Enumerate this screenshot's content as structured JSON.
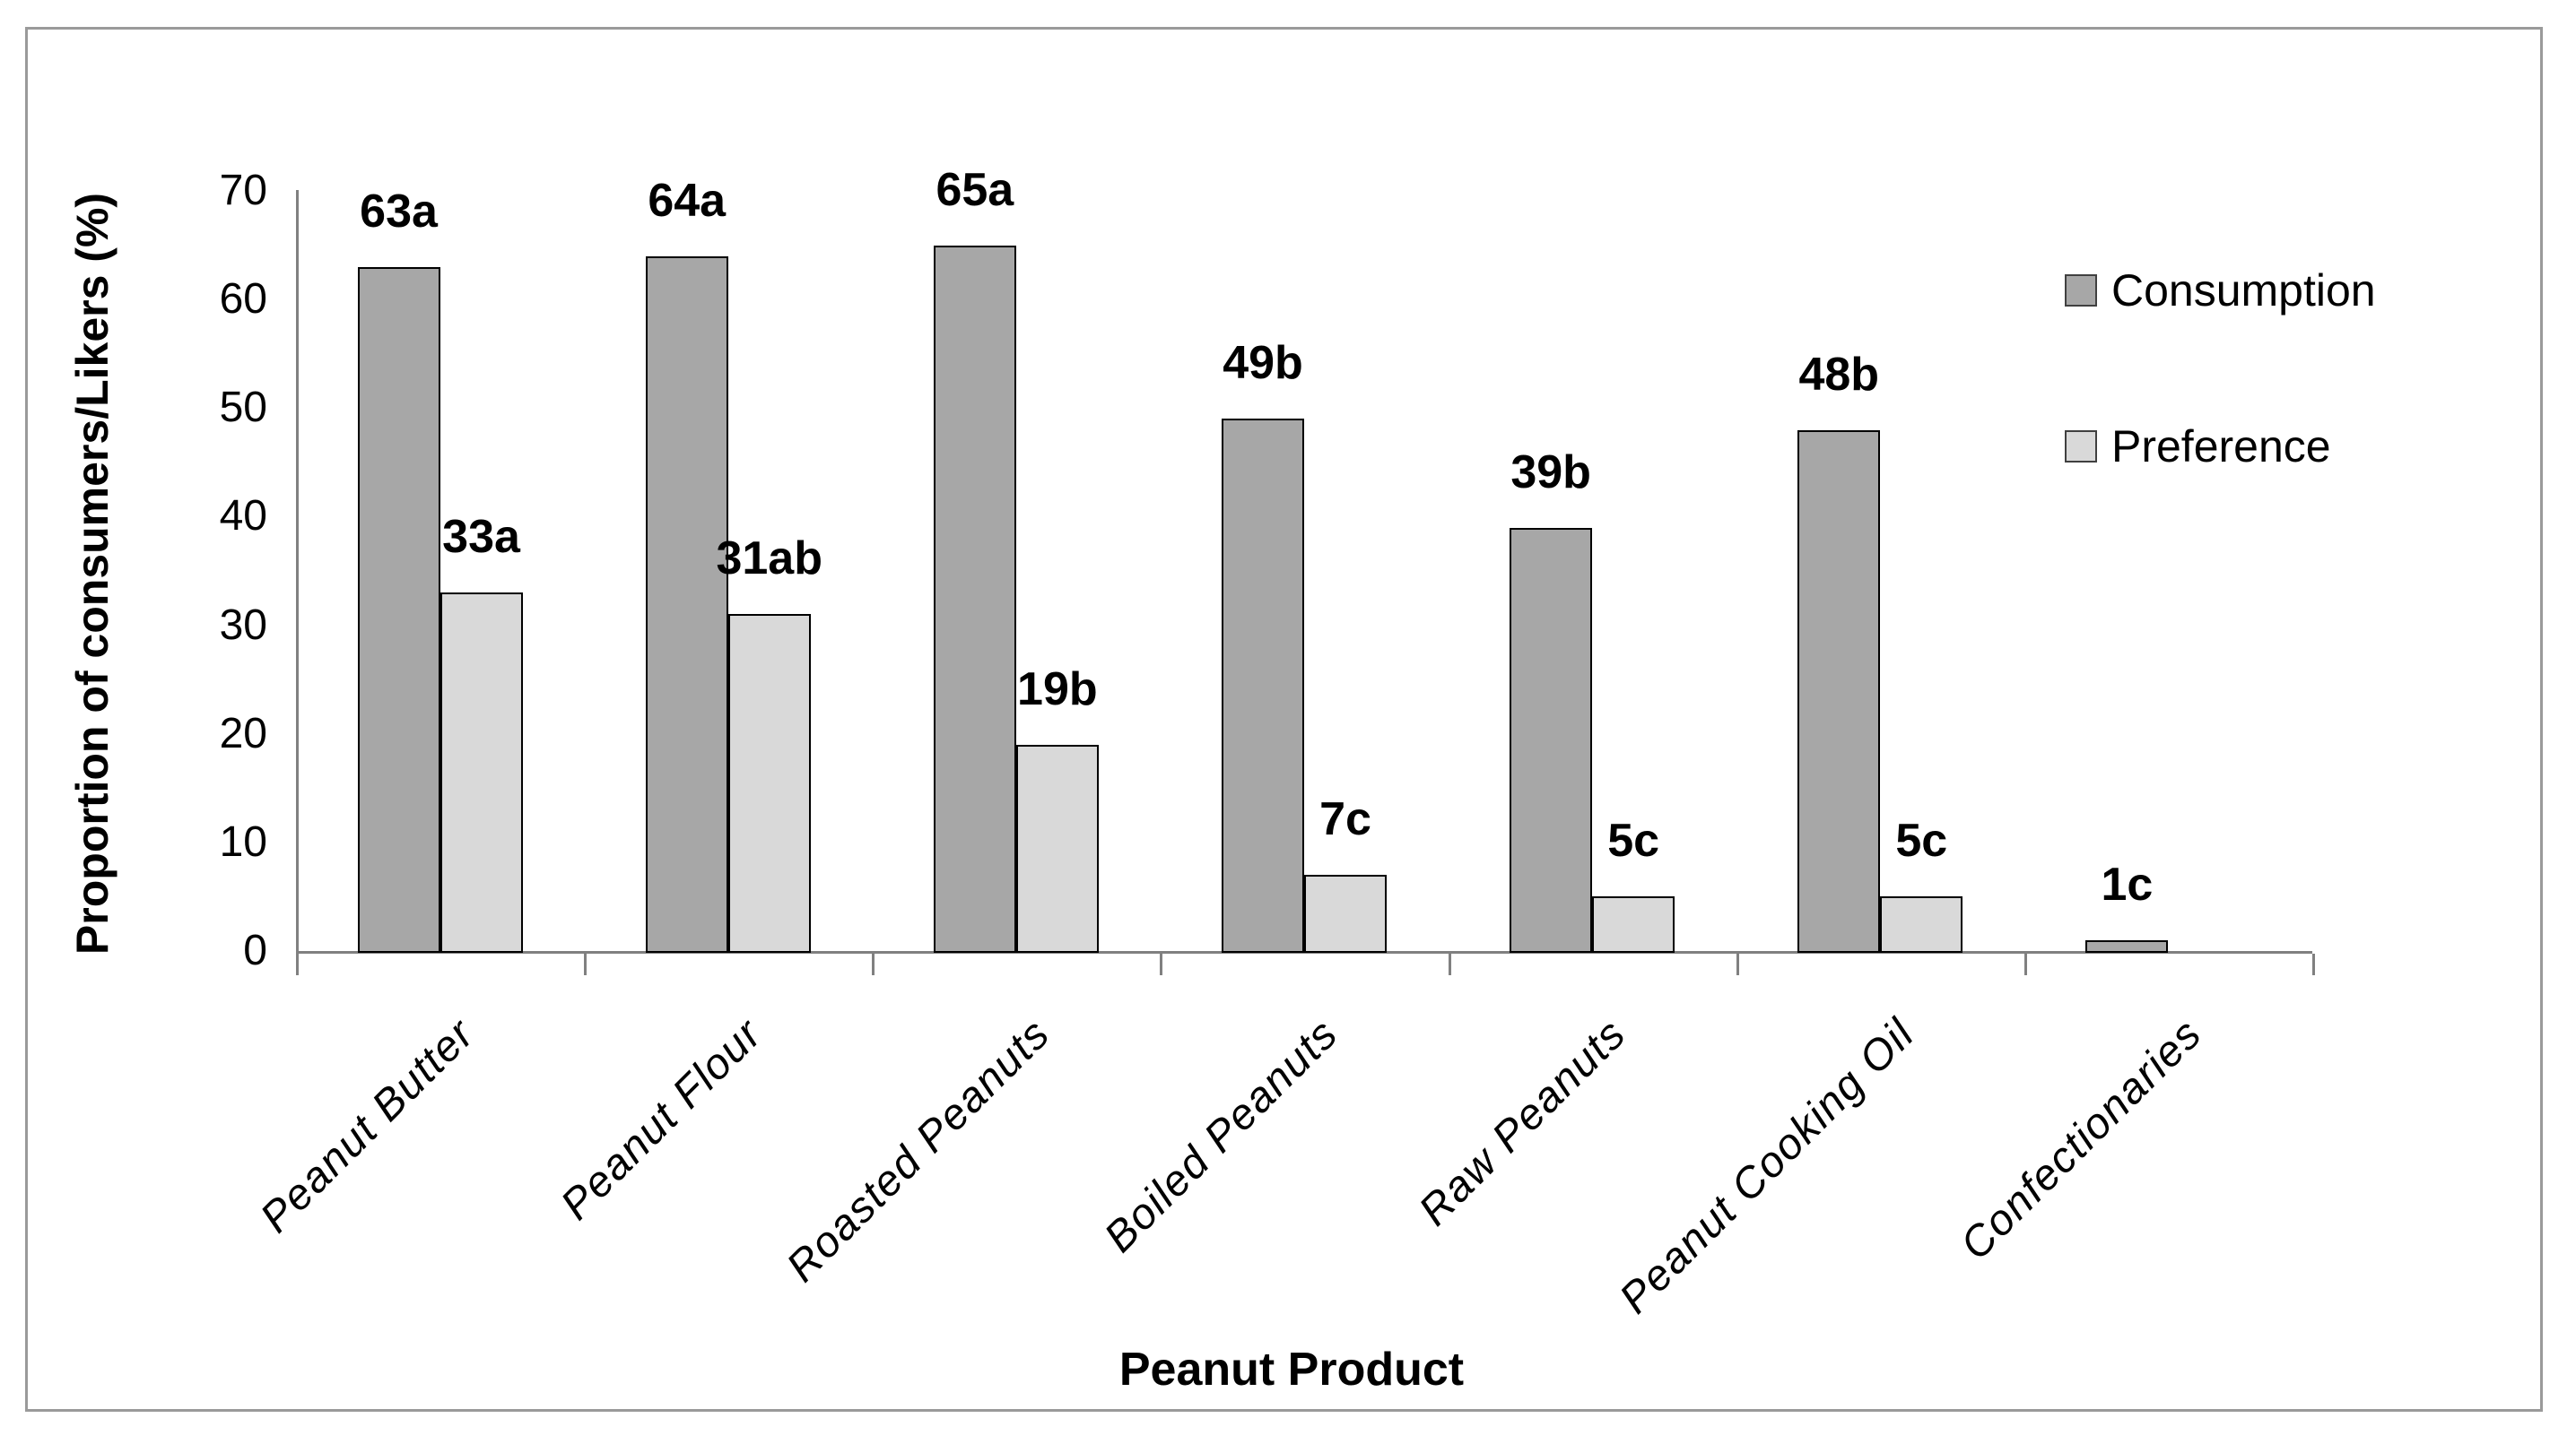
{
  "chart_data": {
    "type": "bar",
    "title": "",
    "xlabel": "Peanut Product",
    "ylabel": "Proportion of consumers/Likers (%)",
    "ylim": [
      0,
      70
    ],
    "yticks": [
      0,
      10,
      20,
      30,
      40,
      50,
      60,
      70
    ],
    "grid": false,
    "legend_position": "inside-top-right",
    "categories": [
      "Peanut Butter",
      "Peanut Flour",
      "Roasted Peanuts",
      "Boiled Peanuts",
      "Raw Peanuts",
      "Peanut Cooking Oil",
      "Confectionaries"
    ],
    "series": [
      {
        "name": "Consumption",
        "color": "#A7A7A7",
        "values": [
          63,
          64,
          65,
          49,
          39,
          48,
          1
        ],
        "value_labels": [
          "63a",
          "64a",
          "65a",
          "49b",
          "39b",
          "48b",
          "1c"
        ]
      },
      {
        "name": "Preference",
        "color": "#D9D9D9",
        "values": [
          33,
          31,
          19,
          7,
          5,
          5,
          0
        ],
        "value_labels": [
          "33a",
          "31ab",
          "19b",
          "7c",
          "5c",
          "5c",
          ""
        ]
      }
    ]
  },
  "colors": {
    "bar_border": "#000000",
    "axis_line": "#808080",
    "outer_border": "#9A9A9A",
    "legend_swatch_border": "#404040",
    "text": "#000000",
    "background": "#FFFFFF"
  }
}
